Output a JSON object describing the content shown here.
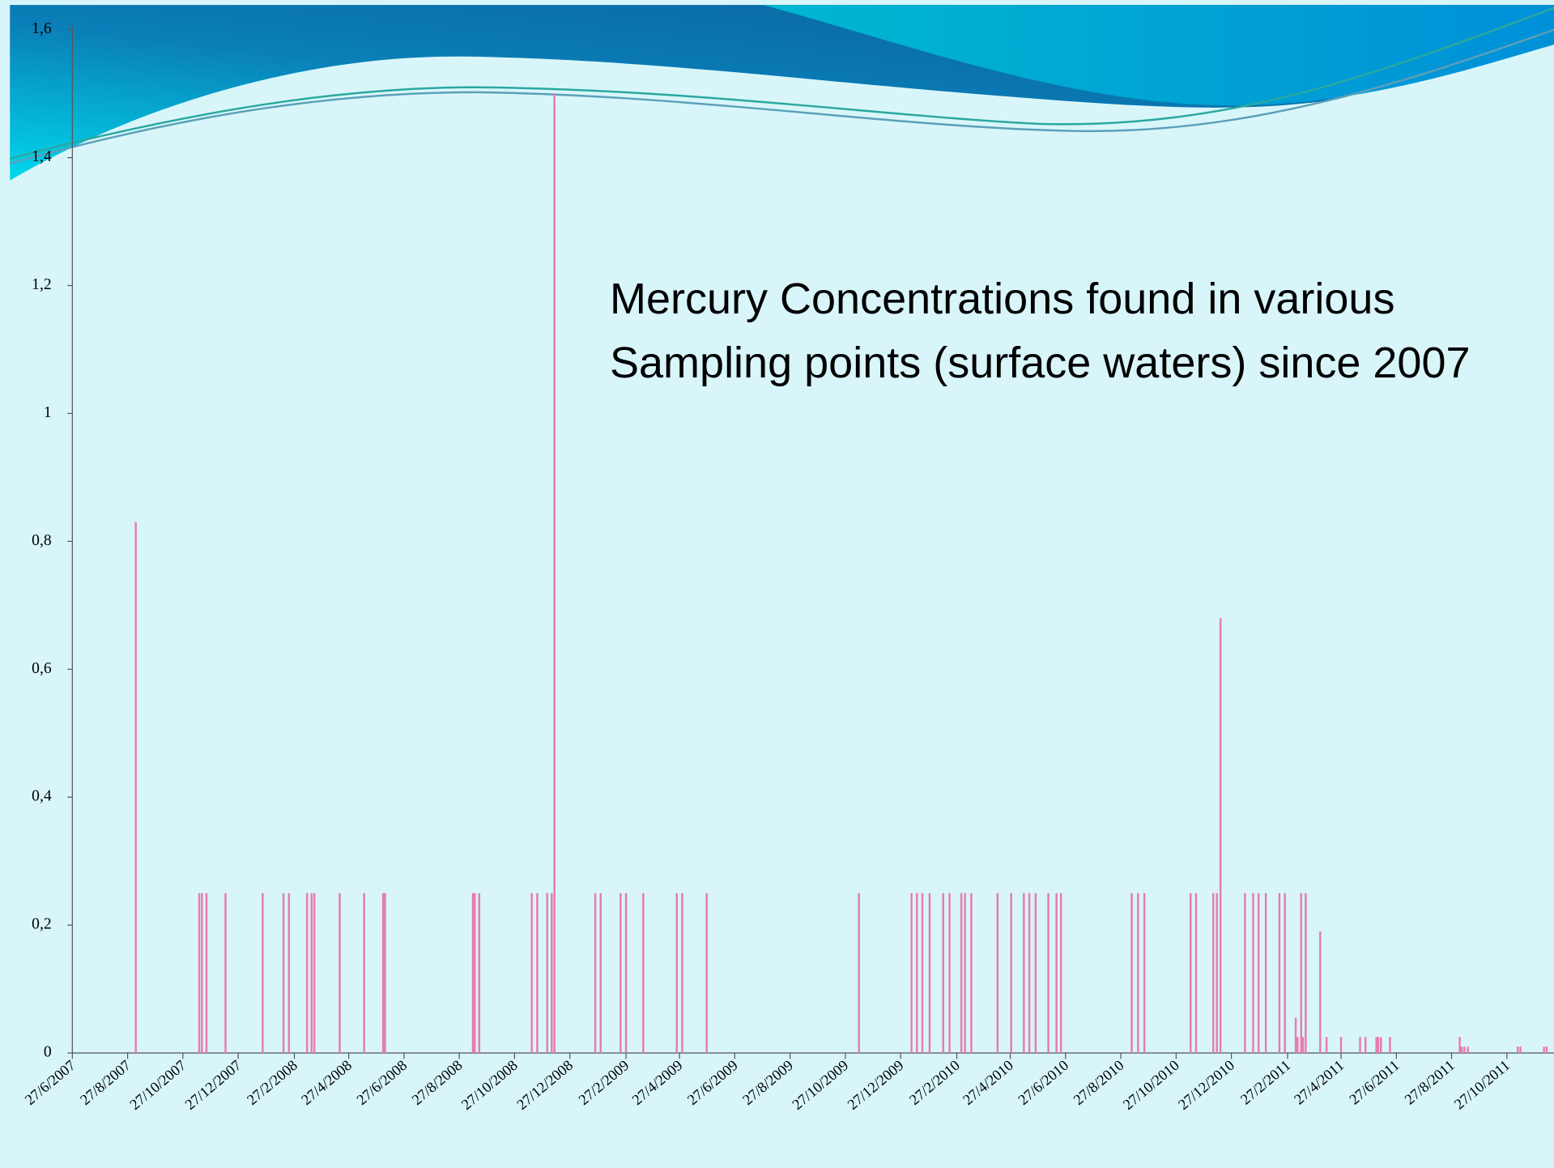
{
  "chart_data": {
    "type": "bar",
    "title": "Mercury Concentrations found in various Sampling points (surface waters) since 2007",
    "color": "#e77bb0",
    "x": [
      "5/9/2007",
      "14/11/2007",
      "17/11/2007",
      "22/11/2007",
      "13/12/2007",
      "23/1/2008",
      "15/2/2008",
      "21/2/2008",
      "12/3/2008",
      "17/3/2008",
      "20/3/2008",
      "17/4/2008",
      "14/5/2008",
      "4/6/2008",
      "6/6/2008",
      "11/9/2008",
      "13/9/2008",
      "18/9/2008",
      "15/11/2008",
      "21/11/2008",
      "2/12/2008",
      "7/12/2008",
      "10/12/2008",
      "24/1/2009",
      "30/1/2009",
      "21/2/2009",
      "27/2/2009",
      "18/3/2009",
      "24/4/2009",
      "30/4/2009",
      "27/5/2009",
      "11/11/2009",
      "8/1/2010",
      "14/1/2010",
      "20/1/2010",
      "28/1/2010",
      "12/2/2010",
      "19/2/2010",
      "4/3/2010",
      "8/3/2010",
      "15/3/2010",
      "13/4/2010",
      "28/4/2010",
      "12/5/2010",
      "18/5/2010",
      "25/5/2010",
      "8/6/2010",
      "17/6/2010",
      "22/6/2010",
      "8/9/2010",
      "15/9/2010",
      "22/9/2010",
      "12/11/2010",
      "18/11/2010",
      "7/12/2010",
      "11/12/2010",
      "15/12/2010",
      "11/1/2011",
      "20/1/2011",
      "26/1/2011",
      "3/2/2011",
      "18/2/2011",
      "24/2/2011",
      "8/3/2011",
      "10/3/2011",
      "14/3/2011",
      "16/3/2011",
      "19/3/2011",
      "4/4/2011",
      "11/4/2011",
      "27/4/2011",
      "18/5/2011",
      "24/5/2011",
      "5/6/2011",
      "7/6/2011",
      "10/6/2011",
      "20/6/2011",
      "5/9/2011",
      "7/9/2011",
      "10/9/2011",
      "14/9/2011",
      "8/11/2011",
      "11/11/2011",
      "7/12/2011",
      "10/12/2011"
    ],
    "values": [
      0.83,
      0.25,
      0.25,
      0.25,
      0.25,
      0.25,
      0.25,
      0.25,
      0.25,
      0.25,
      0.25,
      0.25,
      0.25,
      0.25,
      0.25,
      0.25,
      0.25,
      0.25,
      0.25,
      0.25,
      0.25,
      0.25,
      1.5,
      0.25,
      0.25,
      0.25,
      0.25,
      0.25,
      0.25,
      0.25,
      0.25,
      0.25,
      0.25,
      0.25,
      0.25,
      0.25,
      0.25,
      0.25,
      0.25,
      0.25,
      0.25,
      0.25,
      0.25,
      0.25,
      0.25,
      0.25,
      0.25,
      0.25,
      0.25,
      0.25,
      0.25,
      0.25,
      0.25,
      0.25,
      0.25,
      0.25,
      0.68,
      0.25,
      0.25,
      0.25,
      0.25,
      0.25,
      0.25,
      0.055,
      0.025,
      0.25,
      0.025,
      0.25,
      0.19,
      0.025,
      0.025,
      0.025,
      0.025,
      0.025,
      0.025,
      0.025,
      0.025,
      0.025,
      0.01,
      0.01,
      0.01,
      0.01,
      0.01,
      0.01,
      0.01
    ],
    "xlim": [
      "27/6/2007",
      "18/12/2011"
    ],
    "xticks": [
      "27/6/2007",
      "27/8/2007",
      "27/10/2007",
      "27/12/2007",
      "27/2/2008",
      "27/4/2008",
      "27/6/2008",
      "27/8/2008",
      "27/10/2008",
      "27/12/2008",
      "27/2/2009",
      "27/4/2009",
      "27/6/2009",
      "27/8/2009",
      "27/10/2009",
      "27/12/2009",
      "27/2/2010",
      "27/4/2010",
      "27/6/2010",
      "27/8/2010",
      "27/10/2010",
      "27/12/2010",
      "27/2/2011",
      "27/4/2011",
      "27/6/2011",
      "27/8/2011",
      "27/10/2011"
    ],
    "ylim": [
      0,
      1.6
    ],
    "yticks": [
      0,
      {
        "value": 0.2,
        "label": "0,2"
      },
      {
        "value": 0.4,
        "label": "0,4"
      },
      {
        "value": 0.6,
        "label": "0,6"
      },
      {
        "value": 0.8,
        "label": "0,8"
      },
      1,
      {
        "value": 1.2,
        "label": "1,2"
      },
      {
        "value": 1.4,
        "label": "1,4"
      },
      {
        "value": 1.6,
        "label": "1,6"
      }
    ]
  }
}
